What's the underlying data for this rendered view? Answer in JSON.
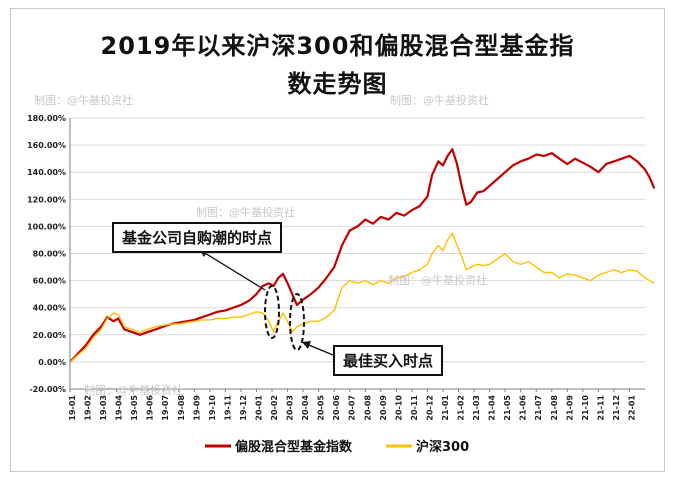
{
  "title_line1": "2019年以来沪深300和偏股混合型基金指",
  "title_line2": "数走势图",
  "watermarks": [
    "制图：@牛基投资社",
    "制图：@牛基投资社",
    "制图：@牛基投资社",
    "制图：@牛基投资社",
    "制图：@牛基投资社"
  ],
  "annotations": {
    "fund_surge": "基金公司自购潮的时点",
    "best_buy": "最佳买入时点"
  },
  "colors": {
    "fund_line": "#c00000",
    "csi_line": "#ffc000",
    "grid": "#d9d9d9",
    "axis": "#7f7f7f"
  },
  "chart_data": {
    "type": "line",
    "title": "2019年以来沪深300和偏股混合型基金指数走势图",
    "xlabel": "",
    "ylabel": "",
    "ylim": [
      -0.2,
      1.8
    ],
    "yticks": [
      "-20.00%",
      "0.00%",
      "20.00%",
      "40.00%",
      "60.00%",
      "80.00%",
      "100.00%",
      "120.00%",
      "140.00%",
      "160.00%",
      "180.00%"
    ],
    "categories": [
      "19-01",
      "19-02",
      "19-03",
      "19-04",
      "19-05",
      "19-06",
      "19-07",
      "19-08",
      "19-09",
      "19-10",
      "19-11",
      "19-12",
      "20-01",
      "20-02",
      "20-03",
      "20-04",
      "20-05",
      "20-06",
      "20-07",
      "20-08",
      "20-09",
      "20-10",
      "20-11",
      "20-12",
      "21-01",
      "21-02",
      "21-03",
      "21-04",
      "21-05",
      "21-06",
      "21-07",
      "21-08",
      "21-09",
      "21-10",
      "21-11",
      "21-12",
      "22-01"
    ],
    "legend_position": "bottom",
    "series": [
      {
        "name": "偏股混合型基金指数",
        "color": "#c00000",
        "points": [
          [
            0,
            0.0
          ],
          [
            0.5,
            0.06
          ],
          [
            1,
            0.12
          ],
          [
            1.5,
            0.2
          ],
          [
            2,
            0.26
          ],
          [
            2.4,
            0.33
          ],
          [
            2.8,
            0.3
          ],
          [
            3.1,
            0.32
          ],
          [
            3.5,
            0.24
          ],
          [
            4,
            0.22
          ],
          [
            4.5,
            0.2
          ],
          [
            5,
            0.22
          ],
          [
            5.5,
            0.24
          ],
          [
            6,
            0.26
          ],
          [
            6.5,
            0.28
          ],
          [
            7,
            0.29
          ],
          [
            7.5,
            0.3
          ],
          [
            8,
            0.31
          ],
          [
            8.5,
            0.33
          ],
          [
            9,
            0.35
          ],
          [
            9.5,
            0.37
          ],
          [
            10,
            0.38
          ],
          [
            10.5,
            0.4
          ],
          [
            11,
            0.42
          ],
          [
            11.5,
            0.45
          ],
          [
            12,
            0.5
          ],
          [
            12.4,
            0.56
          ],
          [
            12.8,
            0.58
          ],
          [
            13.1,
            0.56
          ],
          [
            13.4,
            0.62
          ],
          [
            13.7,
            0.65
          ],
          [
            14,
            0.58
          ],
          [
            14.3,
            0.5
          ],
          [
            14.6,
            0.42
          ],
          [
            15,
            0.46
          ],
          [
            15.5,
            0.5
          ],
          [
            16,
            0.55
          ],
          [
            16.5,
            0.62
          ],
          [
            17,
            0.7
          ],
          [
            17.5,
            0.86
          ],
          [
            18,
            0.97
          ],
          [
            18.5,
            1.0
          ],
          [
            19,
            1.05
          ],
          [
            19.5,
            1.02
          ],
          [
            20,
            1.07
          ],
          [
            20.5,
            1.05
          ],
          [
            21,
            1.1
          ],
          [
            21.5,
            1.08
          ],
          [
            22,
            1.12
          ],
          [
            22.5,
            1.15
          ],
          [
            23,
            1.22
          ],
          [
            23.3,
            1.38
          ],
          [
            23.7,
            1.48
          ],
          [
            24,
            1.45
          ],
          [
            24.3,
            1.52
          ],
          [
            24.6,
            1.57
          ],
          [
            24.9,
            1.46
          ],
          [
            25.2,
            1.3
          ],
          [
            25.5,
            1.16
          ],
          [
            25.8,
            1.18
          ],
          [
            26.2,
            1.25
          ],
          [
            26.6,
            1.26
          ],
          [
            27,
            1.3
          ],
          [
            27.5,
            1.35
          ],
          [
            28,
            1.4
          ],
          [
            28.5,
            1.45
          ],
          [
            29,
            1.48
          ],
          [
            29.5,
            1.5
          ],
          [
            30,
            1.53
          ],
          [
            30.5,
            1.52
          ],
          [
            31,
            1.54
          ],
          [
            31.5,
            1.5
          ],
          [
            32,
            1.46
          ],
          [
            32.5,
            1.5
          ],
          [
            33,
            1.47
          ],
          [
            33.5,
            1.44
          ],
          [
            34,
            1.4
          ],
          [
            34.5,
            1.46
          ],
          [
            35,
            1.48
          ],
          [
            35.5,
            1.5
          ],
          [
            36,
            1.52
          ],
          [
            36.5,
            1.48
          ],
          [
            37,
            1.42
          ],
          [
            37.3,
            1.36
          ],
          [
            37.6,
            1.28
          ]
        ]
      },
      {
        "name": "沪深300",
        "color": "#ffc000",
        "points": [
          [
            0,
            0.0
          ],
          [
            0.5,
            0.05
          ],
          [
            1,
            0.1
          ],
          [
            1.5,
            0.18
          ],
          [
            2,
            0.24
          ],
          [
            2.4,
            0.32
          ],
          [
            2.8,
            0.36
          ],
          [
            3.1,
            0.35
          ],
          [
            3.5,
            0.26
          ],
          [
            4,
            0.24
          ],
          [
            4.5,
            0.22
          ],
          [
            5,
            0.24
          ],
          [
            5.5,
            0.26
          ],
          [
            6,
            0.27
          ],
          [
            6.5,
            0.28
          ],
          [
            7,
            0.28
          ],
          [
            7.5,
            0.29
          ],
          [
            8,
            0.3
          ],
          [
            8.5,
            0.31
          ],
          [
            9,
            0.31
          ],
          [
            9.5,
            0.32
          ],
          [
            10,
            0.32
          ],
          [
            10.5,
            0.33
          ],
          [
            11,
            0.33
          ],
          [
            11.5,
            0.35
          ],
          [
            12,
            0.37
          ],
          [
            12.4,
            0.36
          ],
          [
            12.8,
            0.3
          ],
          [
            13.1,
            0.22
          ],
          [
            13.4,
            0.3
          ],
          [
            13.7,
            0.36
          ],
          [
            14,
            0.3
          ],
          [
            14.3,
            0.22
          ],
          [
            14.6,
            0.26
          ],
          [
            15,
            0.28
          ],
          [
            15.5,
            0.3
          ],
          [
            16,
            0.3
          ],
          [
            16.5,
            0.33
          ],
          [
            17,
            0.38
          ],
          [
            17.5,
            0.55
          ],
          [
            18,
            0.6
          ],
          [
            18.5,
            0.58
          ],
          [
            19,
            0.6
          ],
          [
            19.5,
            0.57
          ],
          [
            20,
            0.6
          ],
          [
            20.5,
            0.58
          ],
          [
            21,
            0.62
          ],
          [
            21.5,
            0.63
          ],
          [
            22,
            0.66
          ],
          [
            22.5,
            0.68
          ],
          [
            23,
            0.72
          ],
          [
            23.3,
            0.8
          ],
          [
            23.7,
            0.86
          ],
          [
            24,
            0.82
          ],
          [
            24.3,
            0.9
          ],
          [
            24.6,
            0.95
          ],
          [
            24.9,
            0.86
          ],
          [
            25.2,
            0.78
          ],
          [
            25.5,
            0.68
          ],
          [
            25.8,
            0.7
          ],
          [
            26.2,
            0.72
          ],
          [
            26.6,
            0.71
          ],
          [
            27,
            0.72
          ],
          [
            27.5,
            0.76
          ],
          [
            28,
            0.8
          ],
          [
            28.5,
            0.74
          ],
          [
            29,
            0.72
          ],
          [
            29.5,
            0.74
          ],
          [
            30,
            0.7
          ],
          [
            30.5,
            0.66
          ],
          [
            31,
            0.66
          ],
          [
            31.5,
            0.62
          ],
          [
            32,
            0.65
          ],
          [
            32.5,
            0.64
          ],
          [
            33,
            0.62
          ],
          [
            33.5,
            0.6
          ],
          [
            34,
            0.64
          ],
          [
            34.5,
            0.66
          ],
          [
            35,
            0.68
          ],
          [
            35.5,
            0.66
          ],
          [
            36,
            0.68
          ],
          [
            36.5,
            0.67
          ],
          [
            37,
            0.62
          ],
          [
            37.3,
            0.6
          ],
          [
            37.6,
            0.58
          ]
        ]
      }
    ]
  }
}
